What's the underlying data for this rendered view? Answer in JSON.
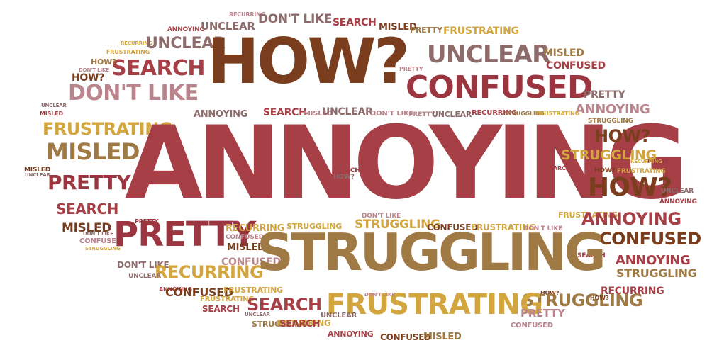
{
  "words": [
    {
      "text": "RECURRING",
      "color": "#b9848c"
    },
    {
      "text": "ANNOYING",
      "color": "#a63f46"
    },
    {
      "text": "UNCLEAR",
      "color": "#8e6b6b"
    },
    {
      "text": "DON'T LIKE",
      "color": "#8e6b6b"
    },
    {
      "text": "SEARCH",
      "color": "#a63f46"
    },
    {
      "text": "MISLED",
      "color": "#7a3e1e"
    },
    {
      "text": "PRETTY",
      "color": "#a07a45"
    },
    {
      "text": "FRUSTRATING",
      "color": "#d3a53e"
    },
    {
      "text": "RECURRING",
      "color": "#d3a53e"
    },
    {
      "text": "FRUSTRATING",
      "color": "#d3a53e"
    },
    {
      "text": "UNCLEAR",
      "color": "#8e6b6b"
    },
    {
      "text": "HOW?",
      "color": "#7a3e1e"
    },
    {
      "text": "UNCLEAR",
      "color": "#8e6b6b"
    },
    {
      "text": "MISLED",
      "color": "#a07a45"
    },
    {
      "text": "SEARCH",
      "color": "#a63f46"
    },
    {
      "text": "HOW?",
      "color": "#a07a45"
    },
    {
      "text": "PRETTY",
      "color": "#b9848c"
    },
    {
      "text": "CONFUSED",
      "color": "#a63f46"
    },
    {
      "text": "DON'T LIKE",
      "color": "#b9848c"
    },
    {
      "text": "CONFUSED",
      "color": "#9b3640"
    },
    {
      "text": "DON'T LIKE",
      "color": "#b9848c"
    },
    {
      "text": "HOW?",
      "color": "#7a3e1e"
    },
    {
      "text": "PRETTY",
      "color": "#8e6b6b"
    },
    {
      "text": "UNCLEAR",
      "color": "#8e6b6b"
    },
    {
      "text": "MISLED",
      "color": "#a63f46"
    },
    {
      "text": "ANNOYING",
      "color": "#b9848c"
    },
    {
      "text": "SEARCH",
      "color": "#a63f46"
    },
    {
      "text": "MISLED",
      "color": "#b9848c"
    },
    {
      "text": "UNCLEAR",
      "color": "#8e6b6b"
    },
    {
      "text": "DON'T LIKE",
      "color": "#b9848c"
    },
    {
      "text": "PRETTY",
      "color": "#b9848c"
    },
    {
      "text": "UNCLEAR",
      "color": "#8e6b6b"
    },
    {
      "text": "RECURRING",
      "color": "#a63f46"
    },
    {
      "text": "STRUGGLING",
      "color": "#a07a45"
    },
    {
      "text": "FRUSTRATING",
      "color": "#d3a53e"
    },
    {
      "text": "ANNOYING",
      "color": "#8e6b6b"
    },
    {
      "text": "FRUSTRATING",
      "color": "#d3a53e"
    },
    {
      "text": "STRUGGLING",
      "color": "#a07a45"
    },
    {
      "text": "MISLED",
      "color": "#a07a45"
    },
    {
      "text": "ANNOYING",
      "color": "#a63f46"
    },
    {
      "text": "HOW?",
      "color": "#7a3e1e"
    },
    {
      "text": "STRUGGLING",
      "color": "#d3a53e"
    },
    {
      "text": "FRUSTRATING",
      "color": "#d3a53e"
    },
    {
      "text": "PRETTY",
      "color": "#9b3640"
    },
    {
      "text": "HOW?",
      "color": "#7a3e1e"
    },
    {
      "text": "SEARCH",
      "color": "#a63f46"
    },
    {
      "text": "HOW?",
      "color": "#8e6b6b"
    },
    {
      "text": "UNCLEAR",
      "color": "#8e6b6b"
    },
    {
      "text": "SEARCH",
      "color": "#a63f46"
    },
    {
      "text": "RECURRING",
      "color": "#d3a53e"
    },
    {
      "text": "MISLED",
      "color": "#7a3e1e"
    },
    {
      "text": "PRETTY",
      "color": "#9b3640"
    },
    {
      "text": "SEARCH",
      "color": "#a63f46"
    },
    {
      "text": "HOW?",
      "color": "#7a3e1e"
    },
    {
      "text": "UNCLEAR",
      "color": "#8e6b6b"
    },
    {
      "text": "MISLED",
      "color": "#7a3e1e"
    },
    {
      "text": "CONFUSED",
      "color": "#b9848c"
    },
    {
      "text": "STRUGGLING",
      "color": "#d3a53e"
    },
    {
      "text": "ANNOYING",
      "color": "#a63f46"
    },
    {
      "text": "PRETTY",
      "color": "#9b3640"
    },
    {
      "text": "RECURRING",
      "color": "#d3a53e"
    },
    {
      "text": "STRUGGLING",
      "color": "#d3a53e"
    },
    {
      "text": "STRUGGLING",
      "color": "#d3a53e"
    },
    {
      "text": "CONFUSED",
      "color": "#7a3e1e"
    },
    {
      "text": "FRUSTRATING",
      "color": "#d3a53e"
    },
    {
      "text": "DON'T LIKE",
      "color": "#b9848c"
    },
    {
      "text": "PRETTY",
      "color": "#9b3640"
    },
    {
      "text": "CONFUSED",
      "color": "#b9848c"
    },
    {
      "text": "MISLED",
      "color": "#7a3e1e"
    },
    {
      "text": "FRUSTRATING",
      "color": "#d3a53e"
    },
    {
      "text": "ANNOYING",
      "color": "#a63f46"
    },
    {
      "text": "CONFUSED",
      "color": "#7a3e1e"
    },
    {
      "text": "DON'T LIKE",
      "color": "#b9848c"
    },
    {
      "text": "DON'T LIKE",
      "color": "#8e6b6b"
    },
    {
      "text": "SEARCH",
      "color": "#a63f46"
    },
    {
      "text": "ANNOYING",
      "color": "#a63f46"
    },
    {
      "text": "STRUGGLING",
      "color": "#a07a45"
    },
    {
      "text": "RECURRING",
      "color": "#a63f46"
    },
    {
      "text": "DON'T LIKE",
      "color": "#8e6b6b"
    },
    {
      "text": "CONFUSED",
      "color": "#b9848c"
    },
    {
      "text": "RECURRING",
      "color": "#d3a53e"
    },
    {
      "text": "UNCLEAR",
      "color": "#8e6b6b"
    },
    {
      "text": "STRUGGLING",
      "color": "#a07a45"
    },
    {
      "text": "ANNOYING",
      "color": "#a63f46"
    },
    {
      "text": "CONFUSED",
      "color": "#7a3e1e"
    },
    {
      "text": "FRUSTRATING",
      "color": "#d3a53e"
    },
    {
      "text": "SEARCH",
      "color": "#a63f46"
    },
    {
      "text": "FRUSTRATING",
      "color": "#d3a53e"
    },
    {
      "text": "SEARCH",
      "color": "#a63f46"
    },
    {
      "text": "HOW?",
      "color": "#7a3e1e"
    },
    {
      "text": "STRUGGLING",
      "color": "#a07a45"
    },
    {
      "text": "HOW?",
      "color": "#7a3e1e"
    },
    {
      "text": "FRUSTRATING",
      "color": "#d3a53e"
    },
    {
      "text": "DON'T LIKE",
      "color": "#b9848c"
    },
    {
      "text": "PRETTY",
      "color": "#b9848c"
    },
    {
      "text": "UNCLEAR",
      "color": "#8e6b6b"
    },
    {
      "text": "CONFUSED",
      "color": "#b9848c"
    },
    {
      "text": "STRUGGLING",
      "color": "#a07a45"
    },
    {
      "text": "ANNOYING",
      "color": "#a63f46"
    },
    {
      "text": "CONFUSED",
      "color": "#7a3e1e"
    },
    {
      "text": "MISLED",
      "color": "#a07a45"
    },
    {
      "text": "UNCLEAR",
      "color": "#8e6b6b"
    },
    {
      "text": "RECURRING",
      "color": "#d3a53e"
    },
    {
      "text": "SEARCH",
      "color": "#a63f46"
    }
  ]
}
